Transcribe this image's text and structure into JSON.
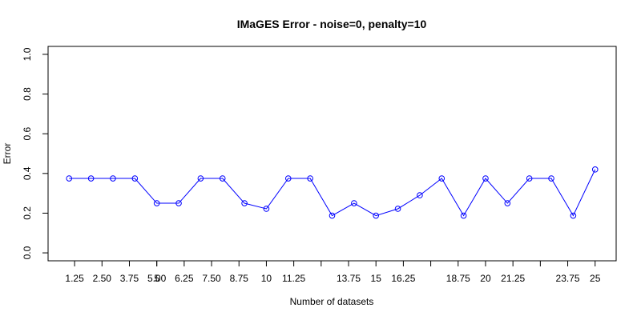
{
  "chart_data": {
    "type": "line",
    "title": "IMaGES Error - noise=0, penalty=10",
    "x_label": "Number of datasets",
    "y_label": "Error",
    "x": [
      1,
      2,
      3,
      4,
      5,
      6,
      7,
      8,
      9,
      10,
      11,
      12,
      13,
      14,
      15,
      16,
      17,
      18,
      19,
      20,
      21,
      22,
      23,
      24,
      25
    ],
    "values": [
      0.375,
      0.375,
      0.375,
      0.375,
      0.25,
      0.25,
      0.375,
      0.375,
      0.25,
      0.222,
      0.375,
      0.375,
      0.1875,
      0.25,
      0.1875,
      0.222,
      0.29,
      0.375,
      0.1875,
      0.375,
      0.25,
      0.375,
      0.375,
      0.1875,
      0.42
    ],
    "color": "#0000ff",
    "xlim": [
      0.04,
      25.96
    ],
    "xticks": [
      1.25,
      {
        "value": 2.5,
        "label": "2.50"
      },
      3.75,
      {
        "value": 5,
        "label": "5.00"
      },
      5,
      6.25,
      {
        "value": 7.5,
        "label": "7.50"
      },
      8.75,
      10,
      11.25,
      {
        "value": 12.5,
        "label": null
      },
      13.75,
      15,
      16.25,
      {
        "value": 17.5,
        "label": null
      },
      18.75,
      20,
      21.25,
      {
        "value": 22.5,
        "label": null
      },
      23.75,
      25
    ],
    "ylim": [
      -0.04,
      1.04
    ],
    "yticks": [
      {
        "value": 0,
        "label": "0.0"
      },
      0.2,
      0.4,
      0.6,
      0.8,
      {
        "value": 1,
        "label": "1.0"
      }
    ]
  }
}
